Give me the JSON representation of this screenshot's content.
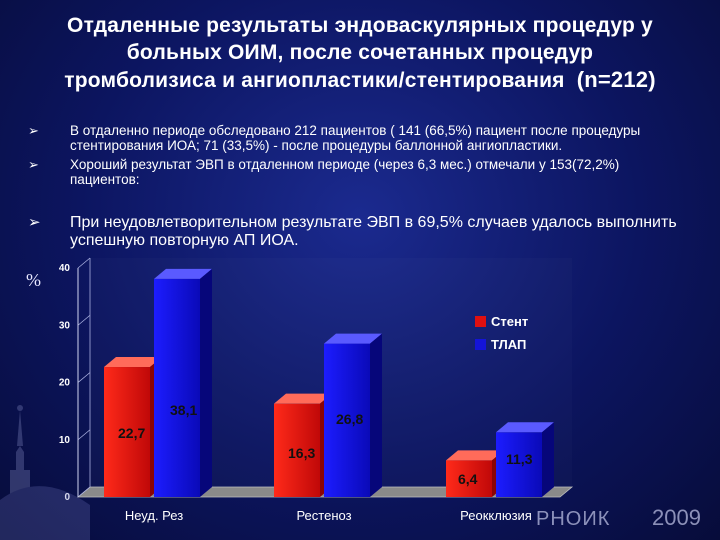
{
  "title": {
    "line1": "Отдаленные результаты эндоваскулярных процедур у",
    "line2": "больных ОИМ, после сочетанных процедур",
    "line3": "тромболизиса и ангиопластики/стентирования",
    "n": "(n=212)"
  },
  "bullets": [
    "В отдаленно периоде обследовано 212 пациентов ( 141 (66,5%) пациент после процедуры стентирования ИОА; 71 (33,5%) - после процедуры баллонной ангиопластики.",
    "Хороший результат ЭВП в отдаленном периоде (через 6,3 мес.) отмечали у 153(72,2%) пациентов:",
    "При неудовлетворительном результате ЭВП в 69,5% случаев удалось выполнить успешную повторную АП ИОА."
  ],
  "footer": {
    "logo": "РНОИК",
    "year": "2009"
  },
  "colors": {
    "stent": "#e01010",
    "tlap": "#1414d8",
    "background": "#0c1560"
  },
  "chart_data": {
    "type": "bar",
    "ylabel": "%",
    "ylim": [
      0,
      40
    ],
    "yticks": [
      0,
      10,
      20,
      30,
      40
    ],
    "categories": [
      "Неуд. Рез",
      "Рестеноз",
      "Реокклюзия"
    ],
    "series": [
      {
        "name": "Стент",
        "values": [
          22.7,
          16.3,
          6.4
        ],
        "labels": [
          "22,7",
          "16,3",
          "6,4"
        ]
      },
      {
        "name": "ТЛАП",
        "values": [
          38.1,
          26.8,
          11.3
        ],
        "labels": [
          "38,1",
          "26,8",
          "11,3"
        ]
      }
    ],
    "legend": "right",
    "style": "3d"
  }
}
